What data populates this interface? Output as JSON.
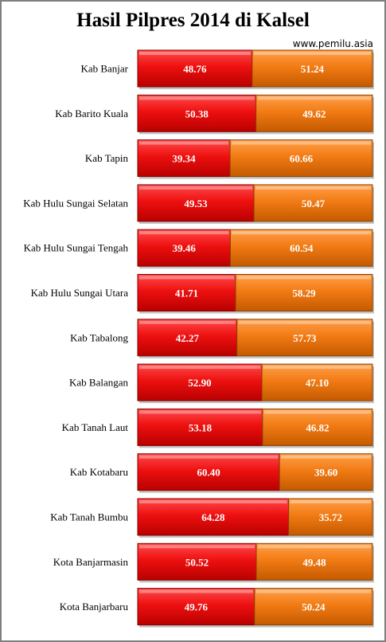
{
  "header": {
    "title": "Hasil Pilpres 2014 di Kalsel",
    "source": "www.pemilu.asia"
  },
  "colors": {
    "series1": "#e80f0f",
    "series2": "#f07d17"
  },
  "chart_data": {
    "type": "bar",
    "orientation": "horizontal",
    "stacked": "100%",
    "title": "Hasil Pilpres 2014 di Kalsel",
    "annotation": "www.pemilu.asia",
    "categories": [
      "Kab Banjar",
      "Kab Barito  Kuala",
      "Kab Tapin",
      "Kab  Hulu Sungai  Selatan",
      "Kab Hulu Sungai  Tengah",
      "Kab  Hulu Sungai  Utara",
      "Kab  Tabalong",
      "Kab Balangan",
      "Kab Tanah Laut",
      "Kab Kotabaru",
      "Kab Tanah  Bumbu",
      "Kota Banjarmasin",
      "Kota Banjarbaru"
    ],
    "series": [
      {
        "values": [
          48.76,
          50.38,
          39.34,
          49.53,
          39.46,
          41.71,
          42.27,
          52.9,
          53.18,
          60.4,
          64.28,
          50.52,
          49.76
        ],
        "labels": [
          "48.76",
          "50.38",
          "39.34",
          "49.53",
          "39.46",
          "41.71",
          "42.27",
          "52.90",
          "53.18",
          "60.40",
          "64.28",
          "50.52",
          "49.76"
        ]
      },
      {
        "values": [
          51.24,
          49.62,
          60.66,
          50.47,
          60.54,
          58.29,
          57.73,
          47.1,
          46.82,
          39.6,
          35.72,
          49.48,
          50.24
        ],
        "labels": [
          "51.24",
          "49.62",
          "60.66",
          "50.47",
          "60.54",
          "58.29",
          "57.73",
          "47.10",
          "46.82",
          "39.60",
          "35.72",
          "49.48",
          "50.24"
        ]
      }
    ],
    "xlim": [
      0,
      100
    ],
    "grid": false,
    "legend": "none"
  }
}
